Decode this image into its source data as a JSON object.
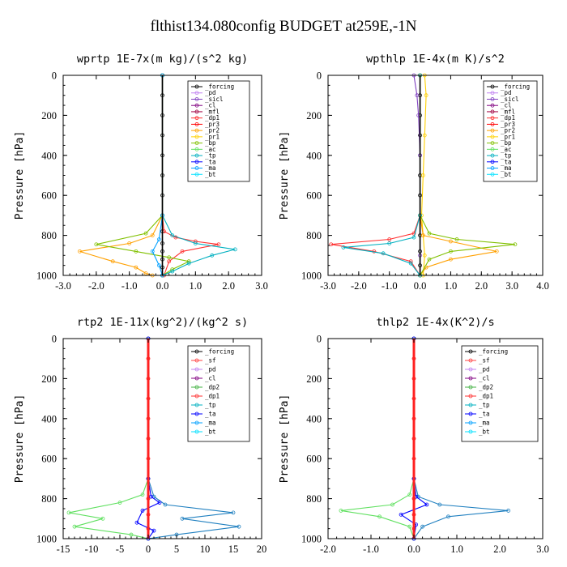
{
  "title": "flthist134.080config  BUDGET at259E,-1N",
  "colors": {
    "forcing": "#000000",
    "pd": "#c080f0",
    "sicl": "#8040c0",
    "cl": "#800080",
    "mfl": "#a00040",
    "dp1": "#ff3030",
    "pr3": "#ff0000",
    "pr2": "#ffa000",
    "pr1": "#ffd000",
    "bp": "#80c000",
    "ac": "#60e060",
    "tp": "#00b0c0",
    "ta": "#0000ff",
    "ma": "#00a0ff",
    "bt": "#00e0ff",
    "sf": "#ff4040",
    "pd_yellow": "#ffc000",
    "cl_yellow": "#e0e000",
    "dp2": "#40b040",
    "dp1_green": "#60e060",
    "tp_blue": "#2080c0"
  },
  "chart_data": [
    {
      "type": "line",
      "title": "wprtp  1E-7x(m kg)/(s^2 kg)",
      "ylabel": "Pressure [hPa]",
      "xlim": [
        -3.0,
        3.0
      ],
      "ylim": [
        1000,
        0
      ],
      "xticks": [
        -3.0,
        -2.0,
        -1.0,
        0.0,
        1.0,
        2.0,
        3.0
      ],
      "xticklabels": [
        "-3.0",
        "-2.0",
        "-1.0",
        "0.0",
        "1.0",
        "2.0",
        "3.0"
      ],
      "yticks": [
        0,
        200,
        400,
        600,
        800,
        1000
      ],
      "yticklabels": [
        "0",
        "200",
        "400",
        "600",
        "800",
        "1000"
      ],
      "legend": [
        "_forcing",
        "_pd",
        "_sicl",
        "_cl",
        "_mfl",
        "_dp1",
        "_pr3",
        "_pr2",
        "_pr1",
        "_bp",
        "_ac",
        "_tp",
        "_ta",
        "_ma",
        "_bt"
      ],
      "series": [
        {
          "name": "_forcing",
          "color": "#000000",
          "x": [
            0,
            0,
            0,
            0,
            0,
            0,
            0,
            0,
            0,
            0,
            0,
            0,
            0,
            0
          ],
          "y": [
            0,
            100,
            200,
            300,
            400,
            500,
            600,
            700,
            780,
            840,
            880,
            920,
            960,
            1000
          ]
        },
        {
          "name": "_dp1",
          "color": "#ff3030",
          "x": [
            0,
            0,
            0.05,
            0.4,
            1.0,
            1.7,
            0.6,
            0.2,
            0.05
          ],
          "y": [
            0,
            700,
            780,
            810,
            830,
            845,
            880,
            930,
            1000
          ]
        },
        {
          "name": "_pr2",
          "color": "#ffa000",
          "x": [
            0,
            0,
            -0.3,
            -1.0,
            -2.5,
            -1.5,
            -0.8,
            -0.5,
            -0.3
          ],
          "y": [
            0,
            700,
            800,
            840,
            880,
            930,
            960,
            990,
            1000
          ]
        },
        {
          "name": "_bp",
          "color": "#80c000",
          "x": [
            0,
            0,
            -0.5,
            -2.0,
            -0.8,
            0.2,
            0.8,
            0.3,
            0.0
          ],
          "y": [
            0,
            700,
            790,
            845,
            880,
            910,
            930,
            970,
            1000
          ]
        },
        {
          "name": "_tp",
          "color": "#00b0c0",
          "x": [
            0,
            0,
            0.3,
            1.0,
            2.2,
            1.5,
            0.8,
            0.3,
            0.0
          ],
          "y": [
            0,
            700,
            800,
            840,
            870,
            900,
            940,
            980,
            1000
          ]
        },
        {
          "name": "_ma",
          "color": "#00a0ff",
          "x": [
            0,
            0,
            -0.1,
            -0.3,
            -0.1,
            0.0
          ],
          "y": [
            0,
            700,
            820,
            880,
            950,
            1000
          ]
        }
      ]
    },
    {
      "type": "line",
      "title": "wpthlp  1E-4x(m K)/s^2",
      "ylabel": "Pressure [hPa]",
      "xlim": [
        -3.0,
        4.0
      ],
      "ylim": [
        1000,
        0
      ],
      "xticks": [
        -3.0,
        -2.0,
        -1.0,
        0.0,
        1.0,
        2.0,
        3.0,
        4.0
      ],
      "xticklabels": [
        "-3.0",
        "-2.0",
        "-1.0",
        "0.0",
        "1.0",
        "2.0",
        "3.0",
        "4.0"
      ],
      "yticks": [
        0,
        200,
        400,
        600,
        800,
        1000
      ],
      "yticklabels": [
        "0",
        "200",
        "400",
        "600",
        "800",
        "1000"
      ],
      "legend": [
        "_forcing",
        "_pd",
        "_sicl",
        "_cl",
        "_mfl",
        "_dp1",
        "_pr3",
        "_pr2",
        "_pr1",
        "_bp",
        "_ac",
        "_tp",
        "_ta",
        "_ma",
        "_bt"
      ],
      "series": [
        {
          "name": "_forcing",
          "color": "#000000",
          "x": [
            0,
            0,
            0,
            0,
            0,
            0,
            0,
            0,
            0,
            0,
            0,
            0
          ],
          "y": [
            0,
            100,
            200,
            300,
            400,
            500,
            600,
            700,
            800,
            880,
            950,
            1000
          ]
        },
        {
          "name": "_cl",
          "color": "#ffd000",
          "x": [
            0.15,
            0.2,
            0.15,
            0.1,
            0.05,
            0.1,
            0.15,
            0.1
          ],
          "y": [
            0,
            100,
            300,
            500,
            700,
            800,
            900,
            1000
          ]
        },
        {
          "name": "_sicl",
          "color": "#8040c0",
          "x": [
            -0.2,
            -0.1,
            -0.05,
            0,
            0,
            0,
            0
          ],
          "y": [
            0,
            100,
            200,
            400,
            700,
            900,
            1000
          ]
        },
        {
          "name": "_dp1",
          "color": "#ff3030",
          "x": [
            0,
            0,
            -0.2,
            -1.0,
            -2.9,
            -1.5,
            -0.3,
            0.0
          ],
          "y": [
            0,
            700,
            790,
            820,
            845,
            880,
            930,
            1000
          ]
        },
        {
          "name": "_pr2",
          "color": "#ffa000",
          "x": [
            0,
            0,
            0.1,
            1.0,
            2.5,
            1.0,
            0.2,
            0.0
          ],
          "y": [
            0,
            700,
            800,
            830,
            880,
            920,
            960,
            1000
          ]
        },
        {
          "name": "_bp",
          "color": "#80c000",
          "x": [
            0,
            0,
            0.3,
            1.2,
            3.1,
            1.0,
            0.3,
            0.0
          ],
          "y": [
            0,
            700,
            790,
            820,
            845,
            880,
            920,
            1000
          ]
        },
        {
          "name": "_tp",
          "color": "#00b0c0",
          "x": [
            0,
            0,
            -0.2,
            -1.0,
            -2.5,
            -1.2,
            -0.3,
            0.0
          ],
          "y": [
            0,
            700,
            810,
            840,
            860,
            890,
            940,
            1000
          ]
        }
      ]
    },
    {
      "type": "line",
      "title": "rtp2  1E-11x(kg^2)/(kg^2 s)",
      "ylabel": "Pressure [hPa]",
      "xlim": [
        -15,
        20
      ],
      "ylim": [
        1000,
        0
      ],
      "xticks": [
        -15,
        -10,
        -5,
        0,
        5,
        10,
        15,
        20
      ],
      "xticklabels": [
        "-15",
        "-10",
        "-5",
        "0",
        "5",
        "10",
        "15",
        "20"
      ],
      "yticks": [
        0,
        200,
        400,
        600,
        800,
        1000
      ],
      "yticklabels": [
        "0",
        "200",
        "400",
        "600",
        "800",
        "1000"
      ],
      "legend": [
        "_forcing",
        "_sf",
        "_pd",
        "_cl",
        "_dp2",
        "_dp1",
        "_tp",
        "_ta",
        "_ma",
        "_bt"
      ],
      "series": [
        {
          "name": "_forcing",
          "color": "#ff2020",
          "x": [
            0,
            0,
            0,
            0,
            0,
            0,
            0,
            0,
            0,
            0,
            0,
            0
          ],
          "y": [
            0,
            100,
            200,
            300,
            400,
            500,
            600,
            700,
            800,
            880,
            950,
            1000
          ]
        },
        {
          "name": "_dp1",
          "color": "#60e060",
          "x": [
            0,
            0,
            -1,
            -5,
            -14,
            -8,
            -13,
            -3,
            0
          ],
          "y": [
            0,
            700,
            780,
            820,
            870,
            900,
            940,
            980,
            1000
          ]
        },
        {
          "name": "_tp",
          "color": "#2080c0",
          "x": [
            0,
            0,
            1,
            3,
            15,
            6,
            16,
            5,
            0
          ],
          "y": [
            0,
            700,
            790,
            830,
            870,
            900,
            940,
            980,
            1000
          ]
        },
        {
          "name": "_ta",
          "color": "#0000ff",
          "x": [
            0,
            0,
            0.5,
            2,
            -1,
            -2,
            1,
            0
          ],
          "y": [
            0,
            700,
            790,
            820,
            860,
            920,
            960,
            1000
          ]
        }
      ]
    },
    {
      "type": "line",
      "title": "thlp2  1E-4x(K^2)/s",
      "ylabel": "Pressure [hPa]",
      "xlim": [
        -2.0,
        3.0
      ],
      "ylim": [
        1000,
        0
      ],
      "xticks": [
        -2.0,
        -1.0,
        0.0,
        1.0,
        2.0,
        3.0
      ],
      "xticklabels": [
        "-2.0",
        "-1.0",
        "0.0",
        "1.0",
        "2.0",
        "3.0"
      ],
      "yticks": [
        0,
        200,
        400,
        600,
        800,
        1000
      ],
      "yticklabels": [
        "0",
        "200",
        "400",
        "600",
        "800",
        "1000"
      ],
      "legend": [
        "_forcing",
        "_sf",
        "_pd",
        "_cl",
        "_dp2",
        "_dp1",
        "_tp",
        "_ta",
        "_ma",
        "_bt"
      ],
      "series": [
        {
          "name": "_forcing",
          "color": "#ff2020",
          "x": [
            0,
            0,
            0,
            0,
            0,
            0,
            0,
            0,
            0,
            0,
            0,
            0
          ],
          "y": [
            0,
            100,
            200,
            300,
            400,
            500,
            600,
            700,
            800,
            880,
            950,
            1000
          ]
        },
        {
          "name": "_dp1",
          "color": "#60e060",
          "x": [
            0,
            0,
            -0.1,
            -0.5,
            -1.7,
            -0.8,
            -0.1,
            0
          ],
          "y": [
            0,
            700,
            780,
            830,
            860,
            890,
            940,
            1000
          ]
        },
        {
          "name": "_tp",
          "color": "#2080c0",
          "x": [
            0,
            0,
            0.1,
            0.6,
            2.2,
            0.8,
            0.2,
            0
          ],
          "y": [
            0,
            700,
            790,
            830,
            860,
            890,
            940,
            1000
          ]
        },
        {
          "name": "_ta",
          "color": "#0000ff",
          "x": [
            0,
            0,
            0.05,
            0.3,
            -0.3,
            0.05,
            0
          ],
          "y": [
            0,
            700,
            790,
            830,
            880,
            930,
            1000
          ]
        }
      ]
    }
  ]
}
